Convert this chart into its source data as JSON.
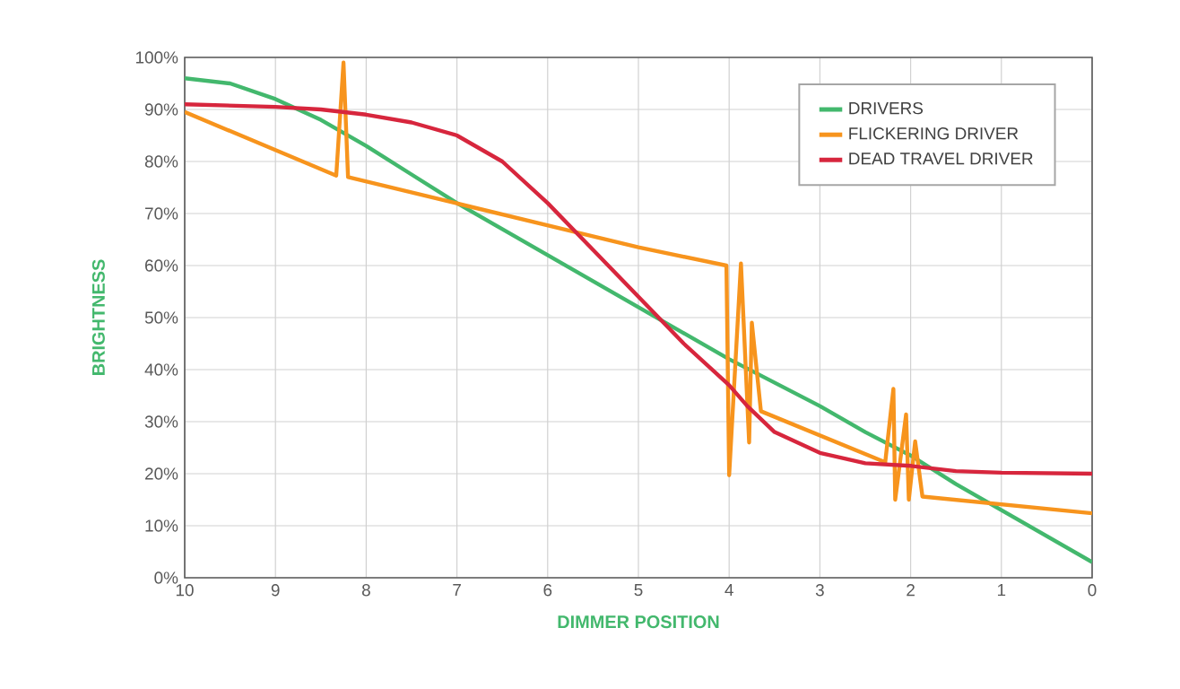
{
  "chart_data": {
    "type": "line",
    "xlabel": "DIMMER POSITION",
    "ylabel": "BRIGHTNESS",
    "xlim": [
      10,
      0
    ],
    "xticks": [
      10,
      9,
      8,
      7,
      6,
      5,
      4,
      3,
      2,
      1,
      0
    ],
    "ylim": [
      0,
      100
    ],
    "yticks": [
      {
        "value": 0,
        "label": "0%"
      },
      {
        "value": 10,
        "label": "10%"
      },
      {
        "value": 20,
        "label": "20%"
      },
      {
        "value": 30,
        "label": "30%"
      },
      {
        "value": 40,
        "label": "40%"
      },
      {
        "value": 50,
        "label": "50%"
      },
      {
        "value": 60,
        "label": "60%"
      },
      {
        "value": 70,
        "label": "70%"
      },
      {
        "value": 80,
        "label": "80%"
      },
      {
        "value": 90,
        "label": "90%"
      },
      {
        "value": 100,
        "label": "100%"
      }
    ],
    "grid": true,
    "legend": "top right",
    "marker": "none",
    "line_style": "solid",
    "series": [
      {
        "name": "DRIVERS",
        "color": "#43b86d",
        "x": [
          10,
          9.5,
          9,
          8.5,
          8,
          7.5,
          7,
          6.5,
          6,
          5.5,
          5,
          4.5,
          4,
          3.5,
          3,
          2.5,
          2,
          1.5,
          1,
          0.5,
          0
        ],
        "values": [
          96,
          95,
          92,
          88,
          83,
          77.5,
          72,
          67,
          62,
          57,
          52,
          47,
          42,
          37.5,
          33,
          28,
          23.5,
          18,
          13,
          8,
          3
        ]
      },
      {
        "name": "FLICKERING DRIVER",
        "color": "#f7941d",
        "x": [
          10,
          8.33,
          8.25,
          8.2,
          5,
          4.03,
          4.0,
          3.87,
          3.78,
          3.75,
          3.65,
          2.28,
          2.19,
          2.17,
          2.05,
          2.02,
          1.95,
          1.87,
          0
        ],
        "values": [
          89.5,
          77.3,
          99,
          77,
          63.5,
          60,
          19.7,
          60.4,
          26,
          49,
          32,
          22.2,
          36.3,
          15,
          31.4,
          15,
          26.2,
          15.6,
          12.4
        ]
      },
      {
        "name": "DEAD TRAVEL DRIVER",
        "color": "#d7263d",
        "x": [
          10,
          9,
          8.5,
          8,
          7.5,
          7,
          6.5,
          6,
          5.5,
          5,
          4.5,
          4,
          3.8,
          3.5,
          3,
          2.5,
          2,
          1.5,
          1,
          0
        ],
        "values": [
          91,
          90.5,
          90,
          89,
          87.5,
          85,
          80,
          72,
          63,
          54,
          45,
          37,
          33,
          28,
          24,
          22,
          21.5,
          20.5,
          20.2,
          20
        ]
      }
    ]
  }
}
